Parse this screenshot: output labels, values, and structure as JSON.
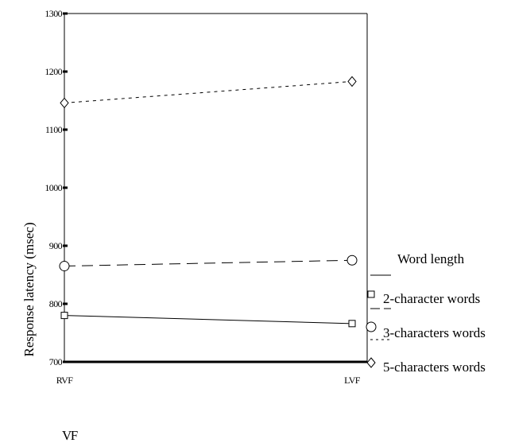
{
  "chart_data": {
    "type": "line",
    "title": "",
    "xlabel": "VF",
    "ylabel": "Response latency (msec)",
    "categories": [
      "RVF",
      "LVF"
    ],
    "ylim": [
      700,
      1300
    ],
    "yticks": [
      700,
      800,
      900,
      1000,
      1100,
      1200,
      1300
    ],
    "series": [
      {
        "name": "2-character words",
        "values": [
          780,
          766
        ],
        "marker": "square",
        "dash": "solid"
      },
      {
        "name": "3-characters words",
        "values": [
          865,
          875
        ],
        "marker": "circle",
        "dash": "long-dash"
      },
      {
        "name": "5-characters words",
        "values": [
          1146,
          1183
        ],
        "marker": "diamond",
        "dash": "short-dash"
      }
    ],
    "legend": {
      "title": "Word length",
      "position": "right"
    },
    "grid": false
  }
}
